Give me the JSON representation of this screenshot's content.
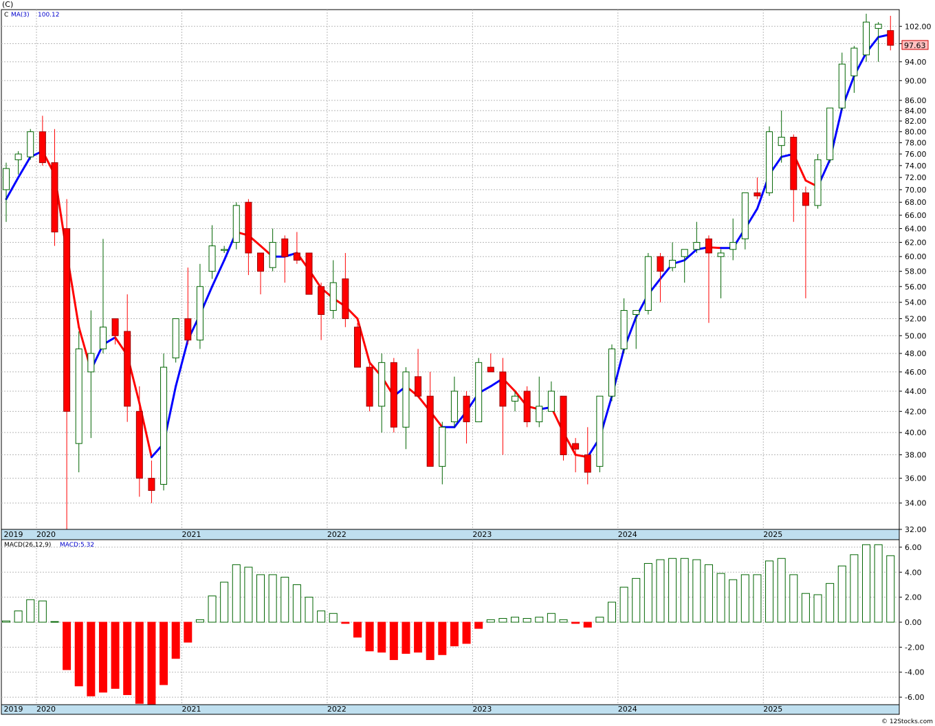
{
  "header": {
    "symbol_label": "(C)"
  },
  "price_panel": {
    "legend_symbol": "C",
    "legend_ma_label": "MA(3)",
    "legend_ma_value": "100.12",
    "last_price": "97.63"
  },
  "macd_panel": {
    "legend_label": "MACD(26,12,9)",
    "legend_value": "MACD:5.32"
  },
  "watermark": "© 12Stocks.com",
  "colors": {
    "up_candle": "#006400",
    "down_candle": "#ff0000",
    "ma_up": "#0000ff",
    "ma_down": "#ff0000",
    "axis_strip": "#bfdfef",
    "grid": "#b8b8b8",
    "last_price_box": "#ffc0c0"
  },
  "chart_data": [
    {
      "type": "candlestick",
      "scale": "log",
      "ylim": [
        32,
        106
      ],
      "yticks": [
        32,
        34,
        36,
        38,
        40,
        42,
        44,
        46,
        48,
        50,
        52,
        54,
        56,
        58,
        60,
        62,
        64,
        66,
        68,
        70,
        72,
        74,
        76,
        78,
        80,
        82,
        84,
        86,
        90,
        94,
        98,
        102
      ],
      "ytick_labels": [
        "32.00",
        "34.00",
        "36.00",
        "38.00",
        "40.00",
        "42.00",
        "44.00",
        "46.00",
        "48.00",
        "50.00",
        "52.00",
        "54.00",
        "56.00",
        "58.00",
        "60.00",
        "62.00",
        "64.00",
        "66.00",
        "68.00",
        "70.00",
        "72.00",
        "74.00",
        "76.00",
        "78.00",
        "80.00",
        "82.00",
        "84.00",
        "86.00",
        "90.00",
        "94.00",
        "98.00",
        "102.00"
      ],
      "x_labels": [
        {
          "label": "2019",
          "index": -0.2
        },
        {
          "label": "2020",
          "index": 2.5
        },
        {
          "label": "2021",
          "index": 14.5
        },
        {
          "label": "2022",
          "index": 26.5
        },
        {
          "label": "2023",
          "index": 38.5
        },
        {
          "label": "2024",
          "index": 50.5
        },
        {
          "label": "2025",
          "index": 62.5
        }
      ],
      "candles": [
        {
          "o": 70.0,
          "h": 74.5,
          "l": 65.0,
          "c": 73.5
        },
        {
          "o": 75.0,
          "h": 76.5,
          "l": 72.5,
          "c": 76.0
        },
        {
          "o": 75.5,
          "h": 80.5,
          "l": 75.0,
          "c": 80.0
        },
        {
          "o": 80.0,
          "h": 83.0,
          "l": 74.0,
          "c": 74.5
        },
        {
          "o": 74.5,
          "h": 80.5,
          "l": 61.5,
          "c": 63.5
        },
        {
          "o": 64.0,
          "h": 68.5,
          "l": 32.0,
          "c": 42.0
        },
        {
          "o": 39.0,
          "h": 50.5,
          "l": 36.5,
          "c": 48.5
        },
        {
          "o": 46.0,
          "h": 53.0,
          "l": 39.5,
          "c": 48.0
        },
        {
          "o": 48.5,
          "h": 62.5,
          "l": 48.0,
          "c": 51.0
        },
        {
          "o": 52.0,
          "h": 52.0,
          "l": 49.0,
          "c": 50.0
        },
        {
          "o": 50.5,
          "h": 55.0,
          "l": 41.0,
          "c": 42.5
        },
        {
          "o": 42.0,
          "h": 44.5,
          "l": 34.5,
          "c": 36.0
        },
        {
          "o": 36.0,
          "h": 37.5,
          "l": 34.0,
          "c": 35.0
        },
        {
          "o": 35.5,
          "h": 48.0,
          "l": 35.0,
          "c": 46.5
        },
        {
          "o": 47.5,
          "h": 52.0,
          "l": 47.0,
          "c": 52.0
        },
        {
          "o": 52.0,
          "h": 58.5,
          "l": 49.0,
          "c": 49.5
        },
        {
          "o": 49.5,
          "h": 59.0,
          "l": 48.5,
          "c": 56.0
        },
        {
          "o": 58.0,
          "h": 64.5,
          "l": 57.0,
          "c": 61.5
        },
        {
          "o": 61.0,
          "h": 61.5,
          "l": 60.5,
          "c": 61.0
        },
        {
          "o": 62.0,
          "h": 68.0,
          "l": 61.0,
          "c": 67.5
        },
        {
          "o": 68.0,
          "h": 68.5,
          "l": 57.5,
          "c": 60.5
        },
        {
          "o": 60.5,
          "h": 60.5,
          "l": 55.0,
          "c": 58.0
        },
        {
          "o": 58.5,
          "h": 64.0,
          "l": 58.0,
          "c": 62.0
        },
        {
          "o": 62.5,
          "h": 63.0,
          "l": 56.5,
          "c": 60.0
        },
        {
          "o": 60.5,
          "h": 63.5,
          "l": 59.0,
          "c": 59.5
        },
        {
          "o": 60.5,
          "h": 60.5,
          "l": 55.0,
          "c": 55.0
        },
        {
          "o": 56.0,
          "h": 56.5,
          "l": 49.5,
          "c": 52.5
        },
        {
          "o": 53.0,
          "h": 59.5,
          "l": 52.0,
          "c": 56.5
        },
        {
          "o": 57.0,
          "h": 60.5,
          "l": 51.0,
          "c": 52.0
        },
        {
          "o": 51.0,
          "h": 51.5,
          "l": 46.5,
          "c": 46.5
        },
        {
          "o": 46.5,
          "h": 47.0,
          "l": 42.0,
          "c": 42.5
        },
        {
          "o": 42.5,
          "h": 48.0,
          "l": 40.0,
          "c": 47.0
        },
        {
          "o": 47.0,
          "h": 47.5,
          "l": 40.0,
          "c": 40.5
        },
        {
          "o": 40.5,
          "h": 46.5,
          "l": 38.5,
          "c": 46.0
        },
        {
          "o": 45.5,
          "h": 48.5,
          "l": 43.5,
          "c": 43.5
        },
        {
          "o": 43.5,
          "h": 46.0,
          "l": 37.0,
          "c": 37.0
        },
        {
          "o": 37.0,
          "h": 41.0,
          "l": 35.5,
          "c": 40.5
        },
        {
          "o": 41.0,
          "h": 45.5,
          "l": 40.5,
          "c": 44.0
        },
        {
          "o": 43.5,
          "h": 44.0,
          "l": 39.0,
          "c": 41.0
        },
        {
          "o": 41.0,
          "h": 47.5,
          "l": 41.0,
          "c": 47.0
        },
        {
          "o": 46.5,
          "h": 48.0,
          "l": 46.0,
          "c": 46.0
        },
        {
          "o": 46.0,
          "h": 47.5,
          "l": 38.0,
          "c": 42.5
        },
        {
          "o": 43.0,
          "h": 44.0,
          "l": 42.0,
          "c": 43.5
        },
        {
          "o": 44.0,
          "h": 44.5,
          "l": 40.5,
          "c": 41.0
        },
        {
          "o": 41.0,
          "h": 45.5,
          "l": 40.5,
          "c": 42.5
        },
        {
          "o": 42.0,
          "h": 45.0,
          "l": 42.0,
          "c": 44.0
        },
        {
          "o": 43.5,
          "h": 43.5,
          "l": 37.5,
          "c": 38.0
        },
        {
          "o": 39.0,
          "h": 39.5,
          "l": 36.5,
          "c": 38.5
        },
        {
          "o": 38.0,
          "h": 40.5,
          "l": 35.5,
          "c": 36.5
        },
        {
          "o": 37.0,
          "h": 43.5,
          "l": 36.5,
          "c": 43.5
        },
        {
          "o": 43.5,
          "h": 49.0,
          "l": 43.0,
          "c": 48.5
        },
        {
          "o": 48.5,
          "h": 54.5,
          "l": 48.0,
          "c": 53.0
        },
        {
          "o": 52.5,
          "h": 53.0,
          "l": 48.5,
          "c": 53.0
        },
        {
          "o": 53.0,
          "h": 60.5,
          "l": 52.5,
          "c": 60.0
        },
        {
          "o": 60.0,
          "h": 60.5,
          "l": 54.0,
          "c": 58.0
        },
        {
          "o": 58.5,
          "h": 62.0,
          "l": 58.0,
          "c": 59.5
        },
        {
          "o": 60.0,
          "h": 61.0,
          "l": 56.5,
          "c": 61.0
        },
        {
          "o": 61.0,
          "h": 65.0,
          "l": 60.5,
          "c": 62.0
        },
        {
          "o": 62.5,
          "h": 63.0,
          "l": 51.5,
          "c": 60.5
        },
        {
          "o": 60.0,
          "h": 61.0,
          "l": 54.5,
          "c": 60.5
        },
        {
          "o": 61.0,
          "h": 65.5,
          "l": 59.5,
          "c": 62.0
        },
        {
          "o": 62.5,
          "h": 69.5,
          "l": 61.0,
          "c": 69.5
        },
        {
          "o": 69.5,
          "h": 72.0,
          "l": 68.5,
          "c": 69.0
        },
        {
          "o": 69.5,
          "h": 81.0,
          "l": 69.0,
          "c": 80.0
        },
        {
          "o": 77.5,
          "h": 84.0,
          "l": 74.5,
          "c": 79.0
        },
        {
          "o": 79.0,
          "h": 79.5,
          "l": 65.0,
          "c": 70.0
        },
        {
          "o": 69.5,
          "h": 70.5,
          "l": 54.5,
          "c": 67.5
        },
        {
          "o": 67.5,
          "h": 76.0,
          "l": 67.0,
          "c": 75.0
        },
        {
          "o": 75.0,
          "h": 84.5,
          "l": 74.5,
          "c": 84.5
        },
        {
          "o": 84.5,
          "h": 96.0,
          "l": 84.0,
          "c": 93.5
        },
        {
          "o": 91.0,
          "h": 97.5,
          "l": 87.5,
          "c": 97.0
        },
        {
          "o": 95.5,
          "h": 105.0,
          "l": 94.0,
          "c": 103.0
        },
        {
          "o": 101.5,
          "h": 103.0,
          "l": 94.0,
          "c": 102.5
        },
        {
          "o": 101.0,
          "h": 104.5,
          "l": 96.5,
          "c": 97.63
        }
      ],
      "ma3": [
        68.5,
        72.0,
        75.5,
        76.5,
        72.5,
        60.5,
        51.0,
        46.2,
        49.0,
        49.8,
        47.8,
        42.8,
        37.8,
        39.0,
        44.5,
        49.5,
        52.5,
        56.0,
        59.5,
        63.5,
        63.0,
        61.5,
        60.0,
        60.0,
        60.5,
        58.2,
        55.8,
        54.5,
        53.5,
        52.0,
        47.0,
        45.5,
        43.5,
        44.5,
        43.5,
        42.0,
        40.5,
        40.5,
        42.0,
        43.8,
        44.5,
        45.3,
        44.0,
        42.5,
        42.2,
        42.4,
        40.0,
        38.0,
        37.8,
        39.5,
        43.5,
        48.5,
        52.2,
        55.0,
        57.0,
        59.0,
        59.5,
        61.0,
        61.3,
        61.2,
        61.2,
        64.0,
        67.0,
        72.5,
        75.5,
        76.0,
        71.5,
        70.5,
        75.0,
        84.5,
        91.0,
        96.0,
        99.5,
        100.12
      ]
    },
    {
      "type": "bar",
      "title": "MACD(26,12,9)",
      "ylim": [
        -6.6,
        6.6
      ],
      "yticks": [
        -6,
        -4,
        -2,
        0,
        2,
        4,
        6
      ],
      "ytick_labels": [
        "-6.00",
        "-4.00",
        "-2.00",
        "0.00",
        "2.00",
        "4.00",
        "6.00"
      ],
      "x_labels": [
        {
          "label": "2019",
          "index": -0.2
        },
        {
          "label": "2020",
          "index": 2.5
        },
        {
          "label": "2021",
          "index": 14.5
        },
        {
          "label": "2022",
          "index": 26.5
        },
        {
          "label": "2023",
          "index": 38.5
        },
        {
          "label": "2024",
          "index": 50.5
        },
        {
          "label": "2025",
          "index": 62.5
        }
      ],
      "values": [
        0.1,
        0.9,
        1.8,
        1.7,
        0.05,
        -3.8,
        -5.1,
        -5.9,
        -5.6,
        -5.3,
        -5.8,
        -6.5,
        -6.7,
        -5.0,
        -2.9,
        -1.6,
        0.2,
        2.1,
        3.2,
        4.6,
        4.4,
        3.8,
        3.8,
        3.6,
        3.0,
        2.0,
        0.9,
        0.7,
        -0.1,
        -1.2,
        -2.3,
        -2.4,
        -3.0,
        -2.5,
        -2.4,
        -3.0,
        -2.6,
        -1.9,
        -1.7,
        -0.5,
        0.2,
        0.3,
        0.4,
        0.3,
        0.4,
        0.7,
        0.2,
        -0.1,
        -0.4,
        0.4,
        1.6,
        2.8,
        3.5,
        4.7,
        5.0,
        5.1,
        5.1,
        5.0,
        4.6,
        3.9,
        3.4,
        3.8,
        3.8,
        4.9,
        5.1,
        3.8,
        2.3,
        2.2,
        3.1,
        4.5,
        5.4,
        6.2,
        6.2,
        5.32
      ]
    }
  ]
}
